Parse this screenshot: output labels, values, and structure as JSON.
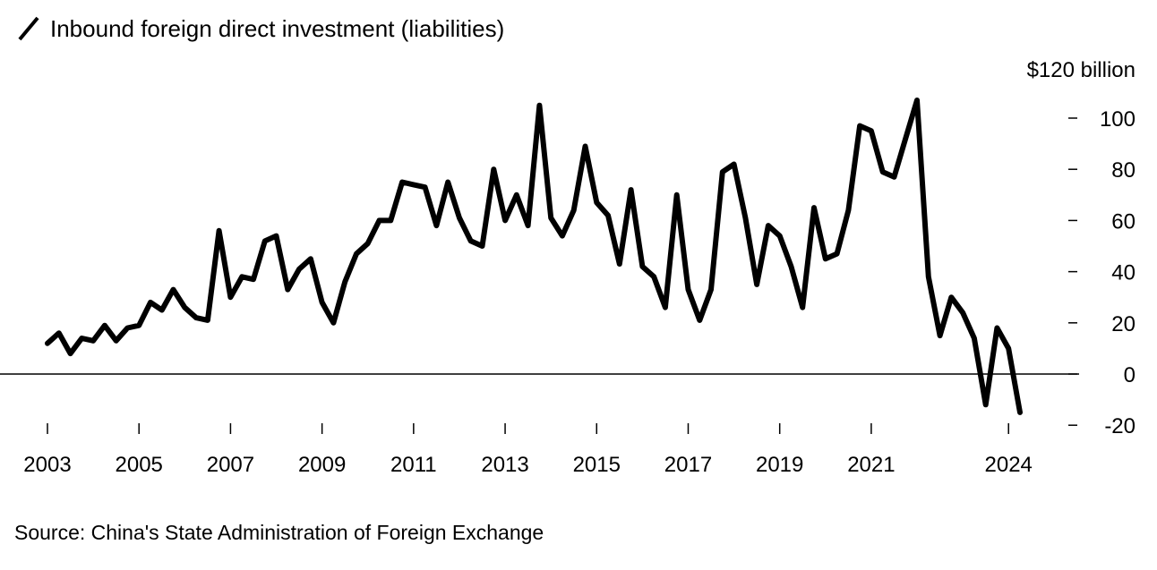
{
  "chart_data": {
    "type": "line",
    "title": "",
    "legend": [
      {
        "name": "Inbound foreign direct investment (liabilities)",
        "color": "#000000"
      }
    ],
    "ylabel": "$120 billion",
    "xlabel": "",
    "ylim": [
      -20,
      120
    ],
    "yticks": [
      -20,
      0,
      20,
      40,
      60,
      80,
      100
    ],
    "ytick_labels": [
      "-20",
      "0",
      "20",
      "40",
      "60",
      "80",
      "100"
    ],
    "xlim": [
      2003.0,
      2025.0
    ],
    "xticks": [
      2003,
      2005,
      2007,
      2009,
      2011,
      2013,
      2015,
      2017,
      2019,
      2021,
      2024
    ],
    "xtick_labels": [
      "2003",
      "2005",
      "2007",
      "2009",
      "2011",
      "2013",
      "2015",
      "2017",
      "2019",
      "2021",
      "2024"
    ],
    "series": [
      {
        "name": "Inbound foreign direct investment (liabilities)",
        "color": "#000000",
        "x": [
          2003.0,
          2003.25,
          2003.5,
          2003.75,
          2004.0,
          2004.25,
          2004.5,
          2004.75,
          2005.0,
          2005.25,
          2005.5,
          2005.75,
          2006.0,
          2006.25,
          2006.5,
          2006.75,
          2007.0,
          2007.25,
          2007.5,
          2007.75,
          2008.0,
          2008.25,
          2008.5,
          2008.75,
          2009.0,
          2009.25,
          2009.5,
          2009.75,
          2010.0,
          2010.25,
          2010.5,
          2010.75,
          2011.0,
          2011.25,
          2011.5,
          2011.75,
          2012.0,
          2012.25,
          2012.5,
          2012.75,
          2013.0,
          2013.25,
          2013.5,
          2013.75,
          2014.0,
          2014.25,
          2014.5,
          2014.75,
          2015.0,
          2015.25,
          2015.5,
          2015.75,
          2016.0,
          2016.25,
          2016.5,
          2016.75,
          2017.0,
          2017.25,
          2017.5,
          2017.75,
          2018.0,
          2018.25,
          2018.5,
          2018.75,
          2019.0,
          2019.25,
          2019.5,
          2019.75,
          2020.0,
          2020.25,
          2020.5,
          2020.75,
          2021.0,
          2021.25,
          2021.5,
          2021.75,
          2022.0,
          2022.25,
          2022.5,
          2022.75,
          2023.0,
          2023.25,
          2023.5,
          2023.75,
          2024.0,
          2024.25
        ],
        "values": [
          12,
          16,
          8,
          14,
          13,
          19,
          13,
          18,
          19,
          28,
          25,
          33,
          26,
          22,
          21,
          56,
          30,
          38,
          37,
          52,
          54,
          33,
          41,
          45,
          28,
          20,
          36,
          47,
          51,
          60,
          60,
          75,
          74,
          73,
          58,
          75,
          61,
          52,
          50,
          80,
          60,
          70,
          58,
          105,
          61,
          54,
          64,
          89,
          67,
          62,
          43,
          72,
          42,
          38,
          26,
          70,
          33,
          21,
          33,
          79,
          82,
          61,
          35,
          58,
          54,
          42,
          26,
          65,
          45,
          47,
          64,
          97,
          95,
          79,
          77,
          92,
          107,
          38,
          15,
          30,
          24,
          14,
          -12,
          18,
          10,
          -15
        ]
      }
    ],
    "grid": false,
    "zero_line": true
  },
  "source": "Source: China's State Administration of Foreign Exchange"
}
